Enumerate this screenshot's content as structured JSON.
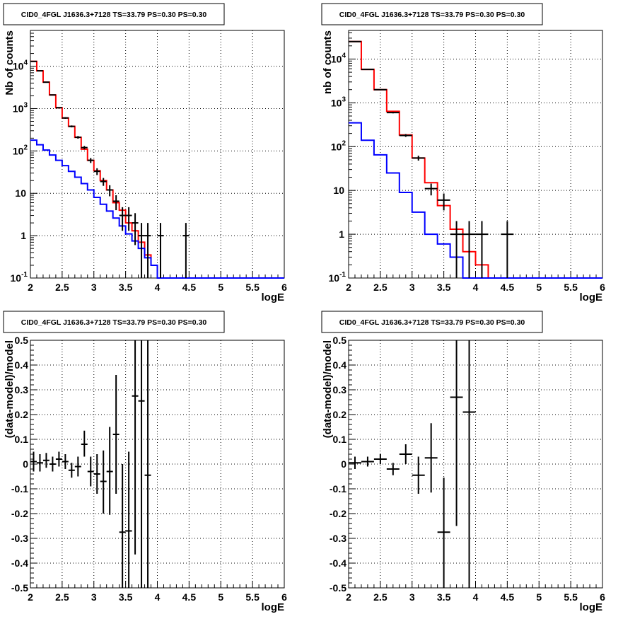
{
  "chart_data": [
    {
      "type": "line",
      "title": "CID0_4FGL J1636.3+7128 TS=33.79 PS=0.30 PS=0.30",
      "xlabel": "logE",
      "ylabel": "Nb of counts",
      "xlim": [
        2,
        6
      ],
      "ylim": [
        0.1,
        70000
      ],
      "yscale": "log",
      "grid": true,
      "xticks": [
        "2",
        "2.5",
        "3",
        "3.5",
        "4",
        "4.5",
        "5",
        "5.5",
        "6"
      ],
      "yticks": [
        {
          "value": 0.1,
          "base": "10",
          "exp": "-1"
        },
        {
          "value": 1,
          "label": "1"
        },
        {
          "value": 10,
          "label": "10"
        },
        {
          "value": 100,
          "base": "10",
          "exp": "2"
        },
        {
          "value": 1000,
          "base": "10",
          "exp": "3"
        },
        {
          "value": 10000,
          "base": "10",
          "exp": "4"
        }
      ],
      "bin_edges": [
        2.0,
        2.1,
        2.2,
        2.3,
        2.4,
        2.5,
        2.6,
        2.7,
        2.8,
        2.9,
        3.0,
        3.1,
        3.2,
        3.3,
        3.4,
        3.5,
        3.6,
        3.7,
        3.8,
        3.9,
        4.0,
        4.1,
        4.2,
        4.3,
        4.4,
        4.5,
        4.6,
        4.7,
        4.8,
        4.9,
        5.0,
        5.1,
        5.2,
        5.3,
        5.4,
        5.5,
        5.6,
        5.7,
        5.8,
        5.9,
        6.0
      ],
      "series": [
        {
          "color": "#ff0000",
          "values": [
            13000,
            7800,
            4200,
            2100,
            1050,
            600,
            380,
            210,
            110,
            60,
            34,
            20,
            12,
            6,
            4,
            2.0,
            1.3,
            0.7,
            0.35,
            0.2,
            0.1,
            0.1,
            0.1,
            0.1,
            0.1,
            0.1,
            0.1,
            0.1,
            0.1,
            0.1,
            0.1,
            0.1,
            0.1,
            0.1,
            0.1,
            0.1,
            0.1,
            0.1,
            0.1,
            0.1
          ]
        },
        {
          "color": "#0000ff",
          "values": [
            180,
            140,
            105,
            80,
            60,
            45,
            33,
            24,
            17,
            12,
            8,
            5.5,
            3.8,
            2.6,
            1.7,
            1.1,
            0.75,
            0.5,
            0.3,
            0.2,
            0.1,
            0.1,
            0.1,
            0.1,
            0.1,
            0.1,
            0.1,
            0.1,
            0.1,
            0.1,
            0.1,
            0.1,
            0.1,
            0.1,
            0.1,
            0.1,
            0.1,
            0.1,
            0.1,
            0.1
          ]
        }
      ],
      "data_points": [
        {
          "x": 2.05,
          "y": 13000,
          "lo": 12880,
          "hi": 13120
        },
        {
          "x": 2.15,
          "y": 7800,
          "lo": 7710,
          "hi": 7890
        },
        {
          "x": 2.25,
          "y": 4200,
          "lo": 4135,
          "hi": 4265
        },
        {
          "x": 2.35,
          "y": 2100,
          "lo": 2055,
          "hi": 2145
        },
        {
          "x": 2.45,
          "y": 1050,
          "lo": 1018,
          "hi": 1082
        },
        {
          "x": 2.55,
          "y": 600,
          "lo": 575,
          "hi": 625
        },
        {
          "x": 2.65,
          "y": 380,
          "lo": 360,
          "hi": 400
        },
        {
          "x": 2.75,
          "y": 210,
          "lo": 195,
          "hi": 225
        },
        {
          "x": 2.85,
          "y": 120,
          "lo": 109,
          "hi": 131
        },
        {
          "x": 2.95,
          "y": 60,
          "lo": 52,
          "hi": 68
        },
        {
          "x": 3.05,
          "y": 33,
          "lo": 27,
          "hi": 39
        },
        {
          "x": 3.15,
          "y": 19,
          "lo": 15,
          "hi": 23
        },
        {
          "x": 3.25,
          "y": 12,
          "lo": 8.5,
          "hi": 15.5
        },
        {
          "x": 3.35,
          "y": 6.5,
          "lo": 4,
          "hi": 9
        },
        {
          "x": 3.45,
          "y": 3,
          "lo": 1.3,
          "hi": 4.7
        },
        {
          "x": 3.55,
          "y": 3,
          "lo": 1.3,
          "hi": 4.7
        },
        {
          "x": 3.65,
          "y": 2,
          "lo": 0.6,
          "hi": 3.4
        },
        {
          "x": 3.75,
          "y": 1,
          "lo": 0.1,
          "hi": 2
        },
        {
          "x": 3.85,
          "y": 1,
          "lo": 0.1,
          "hi": 2
        },
        {
          "x": 4.05,
          "y": 1,
          "lo": 0.1,
          "hi": 2
        },
        {
          "x": 4.45,
          "y": 1,
          "lo": 0.1,
          "hi": 2
        }
      ]
    },
    {
      "type": "line",
      "title": "CID0_4FGL J1636.3+7128 TS=33.79 PS=0.30 PS=0.30",
      "xlabel": "logE",
      "ylabel": "nb of counts",
      "xlim": [
        2,
        6
      ],
      "ylim": [
        0.1,
        45000
      ],
      "yscale": "log",
      "grid": true,
      "xticks": [
        "2",
        "2.5",
        "3",
        "3.5",
        "4",
        "4.5",
        "5",
        "5.5",
        "6"
      ],
      "yticks": [
        {
          "value": 0.1,
          "base": "10",
          "exp": "-1"
        },
        {
          "value": 1,
          "label": "1"
        },
        {
          "value": 10,
          "label": "10"
        },
        {
          "value": 100,
          "base": "10",
          "exp": "2"
        },
        {
          "value": 1000,
          "base": "10",
          "exp": "3"
        },
        {
          "value": 10000,
          "base": "10",
          "exp": "4"
        }
      ],
      "bin_edges": [
        2.0,
        2.2,
        2.4,
        2.6,
        2.8,
        3.0,
        3.2,
        3.4,
        3.6,
        3.8,
        4.0,
        4.2,
        4.4,
        4.6,
        4.8,
        5.0,
        5.2,
        5.4,
        5.6,
        5.8,
        6.0
      ],
      "series": [
        {
          "color": "#ff0000",
          "values": [
            25000,
            5800,
            2000,
            640,
            185,
            55,
            15,
            4.5,
            1.3,
            0.4,
            0.2,
            0.1,
            0.1,
            0.1,
            0.1,
            0.1,
            0.1,
            0.1,
            0.1,
            0.1
          ]
        },
        {
          "color": "#0000ff",
          "values": [
            350,
            140,
            65,
            25,
            9,
            3.2,
            1.0,
            0.6,
            0.3,
            0.1,
            0.1,
            0.1,
            0.1,
            0.1,
            0.1,
            0.1,
            0.1,
            0.1,
            0.1,
            0.1
          ]
        }
      ],
      "data_points": [
        {
          "x": 2.1,
          "y": 25000,
          "lo": 24840,
          "hi": 25160
        },
        {
          "x": 2.3,
          "y": 5800,
          "lo": 5724,
          "hi": 5876
        },
        {
          "x": 2.5,
          "y": 2000,
          "lo": 1955,
          "hi": 2045
        },
        {
          "x": 2.7,
          "y": 600,
          "lo": 575,
          "hi": 625
        },
        {
          "x": 2.9,
          "y": 180,
          "lo": 167,
          "hi": 193
        },
        {
          "x": 3.1,
          "y": 55,
          "lo": 48,
          "hi": 62
        },
        {
          "x": 3.3,
          "y": 11,
          "lo": 7.7,
          "hi": 14.3
        },
        {
          "x": 3.5,
          "y": 6,
          "lo": 3.5,
          "hi": 8.5
        },
        {
          "x": 3.7,
          "y": 1,
          "lo": 0.1,
          "hi": 2
        },
        {
          "x": 3.9,
          "y": 1,
          "lo": 0.1,
          "hi": 2
        },
        {
          "x": 4.1,
          "y": 1,
          "lo": 0.1,
          "hi": 2
        },
        {
          "x": 4.5,
          "y": 1,
          "lo": 0.1,
          "hi": 2
        }
      ]
    },
    {
      "type": "scatter",
      "title": "CID0_4FGL J1636.3+7128 TS=33.79 PS=0.30 PS=0.30",
      "xlabel": "logE",
      "ylabel": "(data-model)/model",
      "xlim": [
        2,
        6
      ],
      "ylim": [
        -0.5,
        0.5
      ],
      "grid": true,
      "xticks": [
        "2",
        "2.5",
        "3",
        "3.5",
        "4",
        "4.5",
        "5",
        "5.5",
        "6"
      ],
      "yticks": [
        "-0.5",
        "-0.4",
        "-0.3",
        "-0.2",
        "-0.1",
        "0",
        "0.1",
        "0.2",
        "0.3",
        "0.4",
        "0.5"
      ],
      "half_width": 0.05,
      "points": [
        {
          "x": 2.05,
          "y": 0.01,
          "lo": -0.03,
          "hi": 0.05
        },
        {
          "x": 2.15,
          "y": 0.005,
          "lo": -0.03,
          "hi": 0.04
        },
        {
          "x": 2.25,
          "y": 0.015,
          "lo": -0.015,
          "hi": 0.045
        },
        {
          "x": 2.35,
          "y": 0.0,
          "lo": -0.03,
          "hi": 0.03
        },
        {
          "x": 2.45,
          "y": 0.02,
          "lo": -0.01,
          "hi": 0.05
        },
        {
          "x": 2.55,
          "y": 0.01,
          "lo": -0.02,
          "hi": 0.04
        },
        {
          "x": 2.65,
          "y": -0.025,
          "lo": -0.055,
          "hi": 0.005
        },
        {
          "x": 2.75,
          "y": -0.01,
          "lo": -0.05,
          "hi": 0.03
        },
        {
          "x": 2.85,
          "y": 0.08,
          "lo": 0.03,
          "hi": 0.135
        },
        {
          "x": 2.95,
          "y": -0.03,
          "lo": -0.09,
          "hi": 0.03
        },
        {
          "x": 3.05,
          "y": -0.04,
          "lo": -0.12,
          "hi": 0.04
        },
        {
          "x": 3.15,
          "y": -0.07,
          "lo": -0.2,
          "hi": 0.055
        },
        {
          "x": 3.25,
          "y": -0.03,
          "lo": -0.205,
          "hi": 0.15
        },
        {
          "x": 3.35,
          "y": 0.12,
          "lo": -0.12,
          "hi": 0.36
        },
        {
          "x": 3.45,
          "y": -0.275,
          "lo": -0.5,
          "hi": 0.0
        },
        {
          "x": 3.55,
          "y": -0.27,
          "lo": -0.5,
          "hi": 0.05
        },
        {
          "x": 3.65,
          "y": 0.275,
          "lo": -0.365,
          "hi": 0.5
        },
        {
          "x": 3.75,
          "y": 0.255,
          "lo": -0.5,
          "hi": 0.5
        },
        {
          "x": 3.85,
          "y": -0.045,
          "lo": -0.5,
          "hi": 0.5
        }
      ]
    },
    {
      "type": "scatter",
      "title": "CID0_4FGL J1636.3+7128 TS=33.79 PS=0.30 PS=0.30",
      "xlabel": "logE",
      "ylabel": "(data-model)/model",
      "xlim": [
        2,
        6
      ],
      "ylim": [
        -0.5,
        0.5
      ],
      "grid": true,
      "xticks": [
        "2",
        "2.5",
        "3",
        "3.5",
        "4",
        "4.5",
        "5",
        "5.5",
        "6"
      ],
      "yticks": [
        "-0.5",
        "-0.4",
        "-0.3",
        "-0.2",
        "-0.1",
        "0",
        "0.1",
        "0.2",
        "0.3",
        "0.4",
        "0.5"
      ],
      "half_width": 0.1,
      "points": [
        {
          "x": 2.1,
          "y": 0.005,
          "lo": -0.02,
          "hi": 0.03
        },
        {
          "x": 2.3,
          "y": 0.01,
          "lo": -0.01,
          "hi": 0.03
        },
        {
          "x": 2.5,
          "y": 0.02,
          "lo": 0.0,
          "hi": 0.04
        },
        {
          "x": 2.7,
          "y": -0.02,
          "lo": -0.045,
          "hi": 0.005
        },
        {
          "x": 2.9,
          "y": 0.04,
          "lo": 0.0,
          "hi": 0.08
        },
        {
          "x": 3.1,
          "y": -0.045,
          "lo": -0.12,
          "hi": 0.03
        },
        {
          "x": 3.3,
          "y": 0.025,
          "lo": -0.115,
          "hi": 0.165
        },
        {
          "x": 3.5,
          "y": -0.275,
          "lo": -0.5,
          "hi": -0.055
        },
        {
          "x": 3.7,
          "y": 0.27,
          "lo": -0.25,
          "hi": 0.5
        },
        {
          "x": 3.9,
          "y": 0.21,
          "lo": -0.5,
          "hi": 0.5
        }
      ]
    }
  ]
}
